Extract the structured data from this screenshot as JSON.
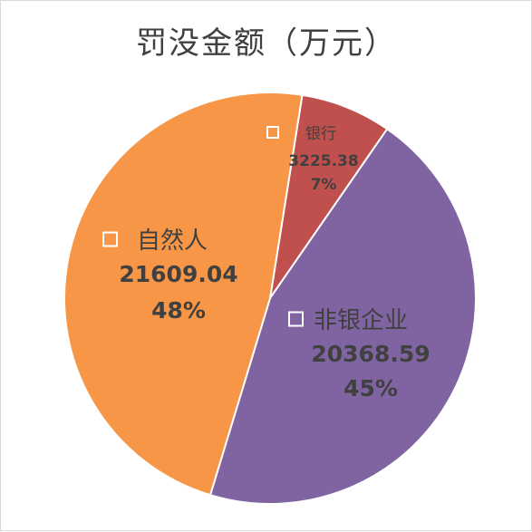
{
  "chart_data": {
    "type": "pie",
    "title": "罚没金额（万元）",
    "slices": [
      {
        "name": "银行",
        "value": 3225.38,
        "percent_label": "7%",
        "color": "#C0504D"
      },
      {
        "name": "非银企业",
        "value": 20368.59,
        "percent_label": "45%",
        "color": "#8064A2"
      },
      {
        "name": "自然人",
        "value": 21609.04,
        "percent_label": "48%",
        "color": "#F79646"
      }
    ],
    "start_direction": "roughly top, slightly right of 12 o'clock",
    "order": "clockwise",
    "label_color": "#404040",
    "slice_border_color": "#ffffff",
    "legend": "none (labels with hollow square markers placed on slices)"
  }
}
